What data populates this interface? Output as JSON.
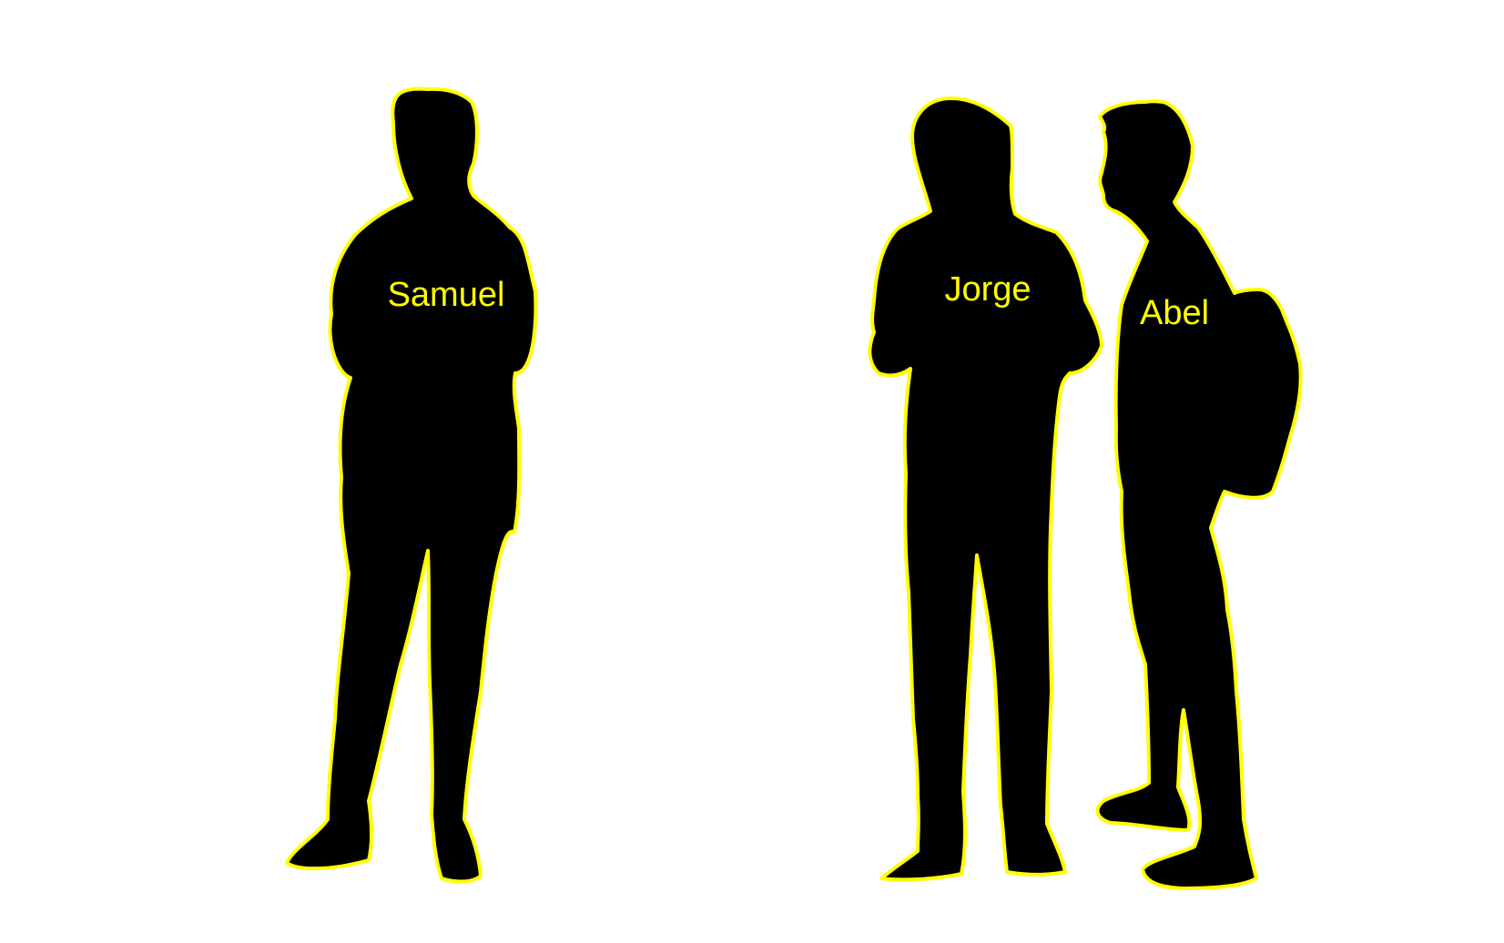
{
  "people": [
    {
      "name": "Samuel"
    },
    {
      "name": "Jorge"
    },
    {
      "name": "Abel"
    }
  ],
  "colors": {
    "background": "#ffffff",
    "silhouette": "#000000",
    "outline": "#ffff00",
    "label": "#ffff00"
  }
}
